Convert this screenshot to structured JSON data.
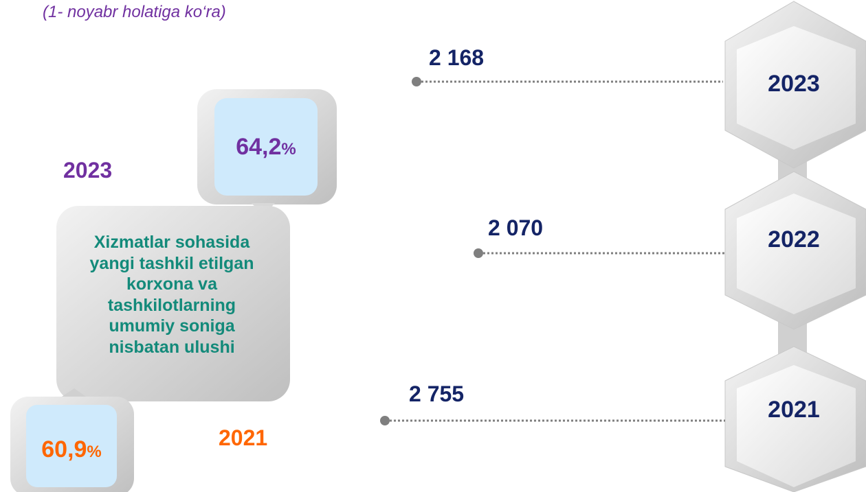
{
  "subtitle": "(1- noyabr holatiga ko‘ra)",
  "share": {
    "description": [
      "Xizmatlar sohasida",
      "yangi tashkil etilgan",
      "korxona va",
      "tashkilotlarning",
      "umumiy soniga",
      "nisbatan ulushi"
    ],
    "items": [
      {
        "year": "2023",
        "value": "64,2",
        "unit": "%"
      },
      {
        "year": "2021",
        "value": "60,9",
        "unit": "%"
      }
    ]
  },
  "timeline": [
    {
      "year": "2023",
      "value": "2 168"
    },
    {
      "year": "2022",
      "value": "2 070"
    },
    {
      "year": "2021",
      "value": "2 755"
    }
  ]
}
